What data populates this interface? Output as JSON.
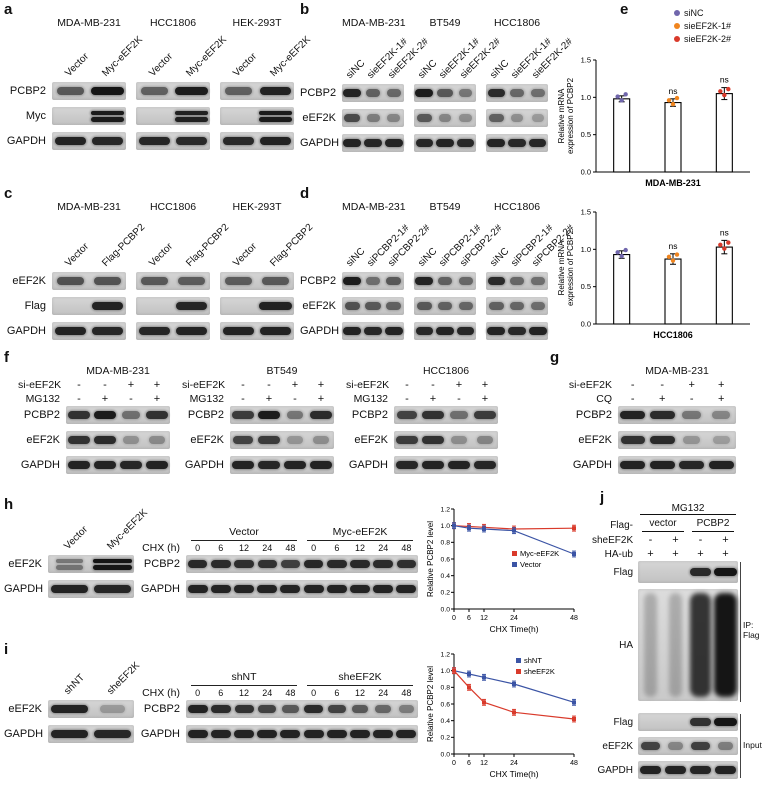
{
  "colors": {
    "red": "#d93a2b",
    "blue": "#3b54a5",
    "purple": "#7066ac",
    "orange": "#f0851f"
  },
  "panel_a": {
    "label": "a",
    "cell_lines": [
      "MDA-MB-231",
      "HCC1806",
      "HEK-293T"
    ],
    "lane_labels": [
      "Vector",
      "Myc-eEF2K"
    ],
    "row_labels": [
      "PCBP2",
      "Myc",
      "GAPDH"
    ],
    "groups": [
      {
        "rows": [
          {
            "bands": [
              0.55,
              1
            ]
          },
          {
            "bands": [
              0,
              0.95
            ],
            "doublet": true
          },
          {
            "bands": [
              0.9,
              0.88
            ]
          }
        ]
      },
      {
        "rows": [
          {
            "bands": [
              0.5,
              0.95
            ]
          },
          {
            "bands": [
              0,
              0.92
            ],
            "doublet": true
          },
          {
            "bands": [
              0.88,
              0.86
            ]
          }
        ]
      },
      {
        "rows": [
          {
            "bands": [
              0.5,
              0.9
            ]
          },
          {
            "bands": [
              0,
              0.95
            ],
            "doublet": true
          },
          {
            "bands": [
              0.86,
              0.9
            ]
          }
        ]
      }
    ]
  },
  "panel_b": {
    "label": "b",
    "cell_lines": [
      "MDA-MB-231",
      "BT549",
      "HCC1806"
    ],
    "lane_labels": [
      "siNC",
      "sieEF2K-1#",
      "sieEF2K-2#"
    ],
    "row_labels": [
      "PCBP2",
      "eEF2K",
      "GAPDH"
    ],
    "groups": [
      {
        "rows": [
          {
            "bands": [
              0.9,
              0.5,
              0.45
            ]
          },
          {
            "bands": [
              0.65,
              0.3,
              0.25
            ]
          },
          {
            "bands": [
              0.9,
              0.88,
              0.9
            ]
          }
        ]
      },
      {
        "rows": [
          {
            "bands": [
              0.95,
              0.55,
              0.35
            ]
          },
          {
            "bands": [
              0.55,
              0.25,
              0.2
            ]
          },
          {
            "bands": [
              0.88,
              0.9,
              0.86
            ]
          }
        ]
      },
      {
        "rows": [
          {
            "bands": [
              0.85,
              0.45,
              0.4
            ]
          },
          {
            "bands": [
              0.5,
              0.2,
              0.12
            ]
          },
          {
            "bands": [
              0.9,
              0.86,
              0.88
            ]
          }
        ]
      }
    ]
  },
  "panel_c": {
    "label": "c",
    "cell_lines": [
      "MDA-MB-231",
      "HCC1806",
      "HEK-293T"
    ],
    "lane_labels": [
      "Vector",
      "Flag-PCBP2"
    ],
    "row_labels": [
      "eEF2K",
      "Flag",
      "GAPDH"
    ],
    "groups": [
      {
        "rows": [
          {
            "bands": [
              0.6,
              0.58
            ]
          },
          {
            "bands": [
              0,
              0.9
            ]
          },
          {
            "bands": [
              0.9,
              0.88
            ]
          }
        ]
      },
      {
        "rows": [
          {
            "bands": [
              0.55,
              0.52
            ]
          },
          {
            "bands": [
              0,
              0.88
            ]
          },
          {
            "bands": [
              0.88,
              0.9
            ]
          }
        ]
      },
      {
        "rows": [
          {
            "bands": [
              0.52,
              0.55
            ]
          },
          {
            "bands": [
              0,
              0.92
            ]
          },
          {
            "bands": [
              0.9,
              0.9
            ]
          }
        ]
      }
    ]
  },
  "panel_d": {
    "label": "d",
    "cell_lines": [
      "MDA-MB-231",
      "BT549",
      "HCC1806"
    ],
    "lane_labels": [
      "siNC",
      "siPCBP2-1#",
      "siPCBP2-2#"
    ],
    "row_labels": [
      "PCBP2",
      "eEF2K",
      "GAPDH"
    ],
    "groups": [
      {
        "rows": [
          {
            "bands": [
              0.95,
              0.4,
              0.55
            ]
          },
          {
            "bands": [
              0.6,
              0.55,
              0.5
            ]
          },
          {
            "bands": [
              0.9,
              0.88,
              0.9
            ]
          }
        ]
      },
      {
        "rows": [
          {
            "bands": [
              0.9,
              0.5,
              0.45
            ]
          },
          {
            "bands": [
              0.55,
              0.5,
              0.46
            ]
          },
          {
            "bands": [
              0.88,
              0.9,
              0.88
            ]
          }
        ]
      },
      {
        "rows": [
          {
            "bands": [
              0.85,
              0.45,
              0.4
            ]
          },
          {
            "bands": [
              0.5,
              0.46,
              0.42
            ]
          },
          {
            "bands": [
              0.9,
              0.86,
              0.9
            ]
          }
        ]
      }
    ]
  },
  "panel_e": {
    "label": "e",
    "legend": [
      {
        "label": "siNC",
        "color": "purple"
      },
      {
        "label": "sieEF2K-1#",
        "color": "orange"
      },
      {
        "label": "sieEF2K-2#",
        "color": "red"
      }
    ]
  },
  "panel_f": {
    "label": "f",
    "cell_lines": [
      "MDA-MB-231",
      "BT549",
      "HCC1806"
    ],
    "cond_labels": [
      "si-eEF2K",
      "MG132"
    ],
    "conds": [
      [
        "-",
        "-",
        "+",
        "+"
      ],
      [
        "-",
        "+",
        "-",
        "+"
      ]
    ],
    "row_labels": [
      "PCBP2",
      "eEF2K",
      "GAPDH"
    ],
    "groups": [
      {
        "rows": [
          {
            "bands": [
              0.8,
              0.95,
              0.4,
              0.8
            ]
          },
          {
            "bands": [
              0.8,
              0.85,
              0.18,
              0.22
            ]
          },
          {
            "bands": [
              0.9,
              0.9,
              0.88,
              0.9
            ]
          }
        ]
      },
      {
        "rows": [
          {
            "bands": [
              0.75,
              0.95,
              0.35,
              0.85
            ]
          },
          {
            "bands": [
              0.7,
              0.75,
              0.15,
              0.2
            ]
          },
          {
            "bands": [
              0.9,
              0.88,
              0.9,
              0.9
            ]
          }
        ]
      },
      {
        "rows": [
          {
            "bands": [
              0.7,
              0.8,
              0.4,
              0.75
            ]
          },
          {
            "bands": [
              0.75,
              0.8,
              0.2,
              0.26
            ]
          },
          {
            "bands": [
              0.88,
              0.9,
              0.9,
              0.88
            ]
          }
        ]
      }
    ]
  },
  "panel_g": {
    "label": "g",
    "cell_line": "MDA-MB-231",
    "cond_labels": [
      "si-eEF2K",
      "CQ"
    ],
    "conds": [
      [
        "-",
        "-",
        "+",
        "+"
      ],
      [
        "-",
        "+",
        "-",
        "+"
      ]
    ],
    "row_labels": [
      "PCBP2",
      "eEF2K",
      "GAPDH"
    ],
    "rows": [
      {
        "bands": [
          0.9,
          0.85,
          0.35,
          0.25
        ]
      },
      {
        "bands": [
          0.8,
          0.85,
          0.15,
          0.1
        ]
      },
      {
        "bands": [
          0.9,
          0.9,
          0.88,
          0.9
        ]
      }
    ]
  },
  "panel_h": {
    "label": "h",
    "small": {
      "lane_labels": [
        "Vector",
        "Myc-eEF2K"
      ],
      "row_labels": [
        "eEF2K",
        "GAPDH"
      ],
      "rows": [
        {
          "bands": [
            0.35,
            1
          ],
          "doublet": true
        },
        {
          "bands": [
            0.9,
            0.88
          ]
        }
      ]
    },
    "chx": {
      "chx_label": "CHX (h)",
      "group_labels": [
        "Vector",
        "Myc-eEF2K"
      ],
      "times": [
        "0",
        "6",
        "12",
        "24",
        "48",
        "0",
        "6",
        "12",
        "24",
        "48"
      ],
      "row_labels": [
        "PCBP2",
        "GAPDH"
      ],
      "rows": [
        {
          "bands": [
            0.86,
            0.85,
            0.83,
            0.8,
            0.72,
            0.88,
            0.87,
            0.86,
            0.85,
            0.83
          ]
        },
        {
          "bands": [
            0.9,
            0.9,
            0.9,
            0.9,
            0.9,
            0.9,
            0.9,
            0.9,
            0.9,
            0.9
          ]
        }
      ]
    }
  },
  "panel_i": {
    "label": "i",
    "small": {
      "lane_labels": [
        "shNT",
        "sheEF2K"
      ],
      "row_labels": [
        "eEF2K",
        "GAPDH"
      ],
      "rows": [
        {
          "bands": [
            0.9,
            0.12
          ]
        },
        {
          "bands": [
            0.9,
            0.88
          ]
        }
      ]
    },
    "chx": {
      "chx_label": "CHX (h)",
      "group_labels": [
        "shNT",
        "sheEF2K"
      ],
      "times": [
        "0",
        "6",
        "12",
        "24",
        "48",
        "0",
        "6",
        "12",
        "24",
        "48"
      ],
      "row_labels": [
        "PCBP2",
        "GAPDH"
      ],
      "rows": [
        {
          "bands": [
            0.9,
            0.85,
            0.8,
            0.7,
            0.55,
            0.85,
            0.7,
            0.55,
            0.45,
            0.3
          ]
        },
        {
          "bands": [
            0.9,
            0.9,
            0.9,
            0.9,
            0.9,
            0.9,
            0.9,
            0.9,
            0.9,
            0.9
          ]
        }
      ]
    }
  },
  "panel_j": {
    "label": "j",
    "mg132": "MG132",
    "flag_label": "Flag-",
    "col_groups": [
      "vector",
      "PCBP2"
    ],
    "cond_labels": [
      "sheEF2K",
      "HA-ub"
    ],
    "conds": [
      [
        "-",
        "+",
        "-",
        "+"
      ],
      [
        "+",
        "+",
        "+",
        "+"
      ]
    ],
    "ip_rows": [
      {
        "label": "Flag",
        "blot": {
          "bands": [
            0,
            0,
            0.85,
            1
          ],
          "bh": 8
        }
      },
      {
        "label": "HA",
        "blot": {
          "bands": [
            0.06,
            0.06,
            0.8,
            1
          ],
          "smear": true
        }
      }
    ],
    "ip_bracket": [
      "IP:",
      "Flag"
    ],
    "input_rows": [
      {
        "label": "Flag",
        "blot": {
          "bands": [
            0,
            0,
            0.8,
            1
          ]
        }
      },
      {
        "label": "eEF2K",
        "blot": {
          "bands": [
            0.7,
            0.25,
            0.72,
            0.3
          ]
        }
      },
      {
        "label": "GAPDH",
        "blot": {
          "bands": [
            0.9,
            0.9,
            0.88,
            0.9
          ]
        }
      }
    ],
    "input_bracket": "Input"
  },
  "chart_data": [
    {
      "type": "bar",
      "categories": [
        "siNC",
        "sieEF2K-1#",
        "sieEF2K-2#"
      ],
      "values": [
        0.98,
        0.93,
        1.05
      ],
      "errors": [
        0.04,
        0.05,
        0.08
      ],
      "ns": [
        1,
        2
      ],
      "dot_colors": [
        "purple",
        "orange",
        "red"
      ],
      "xlabel": "MDA-MB-231",
      "ylabel": [
        "Relative mRNA",
        "expression of PCBP2"
      ],
      "ylim": [
        0,
        1.5
      ],
      "yticks": [
        0,
        0.5,
        1,
        1.5
      ]
    },
    {
      "type": "bar",
      "categories": [
        "siNC",
        "sieEF2K-1#",
        "sieEF2K-2#"
      ],
      "values": [
        0.93,
        0.87,
        1.03
      ],
      "errors": [
        0.05,
        0.07,
        0.09
      ],
      "ns": [
        1,
        2
      ],
      "dot_colors": [
        "purple",
        "orange",
        "red"
      ],
      "xlabel": "HCC1806",
      "ylabel": [
        "Relative mRNA",
        "expression of PCBP2"
      ],
      "ylim": [
        0,
        1.5
      ],
      "yticks": [
        0,
        0.5,
        1,
        1.5
      ]
    },
    {
      "type": "line",
      "x": [
        0,
        6,
        12,
        24,
        48
      ],
      "xlim": [
        0,
        48
      ],
      "ylim": [
        0,
        1.2
      ],
      "yticks": [
        0,
        0.2,
        0.4,
        0.6,
        0.8,
        1,
        1.2
      ],
      "xlabel": "CHX Time(h)",
      "ylabel": "Relative PCBP2 level",
      "legend_pos": "middle-right",
      "series": [
        {
          "name": "Myc-eEF2K",
          "color": "red",
          "values": [
            1,
            0.99,
            0.98,
            0.96,
            0.97
          ]
        },
        {
          "name": "Vector",
          "color": "blue",
          "values": [
            1,
            0.97,
            0.96,
            0.94,
            0.66
          ]
        }
      ]
    },
    {
      "type": "line",
      "x": [
        0,
        6,
        12,
        24,
        48
      ],
      "xlim": [
        0,
        48
      ],
      "ylim": [
        0,
        1.2
      ],
      "yticks": [
        0,
        0.2,
        0.4,
        0.6,
        0.8,
        1,
        1.2
      ],
      "xlabel": "CHX Time(h)",
      "ylabel": "Relative PCBP2 level",
      "legend_pos": "top-right",
      "series": [
        {
          "name": "shNT",
          "color": "blue",
          "values": [
            1,
            0.96,
            0.92,
            0.84,
            0.62
          ]
        },
        {
          "name": "sheEF2K",
          "color": "red",
          "values": [
            1,
            0.8,
            0.62,
            0.5,
            0.42
          ]
        }
      ]
    }
  ]
}
